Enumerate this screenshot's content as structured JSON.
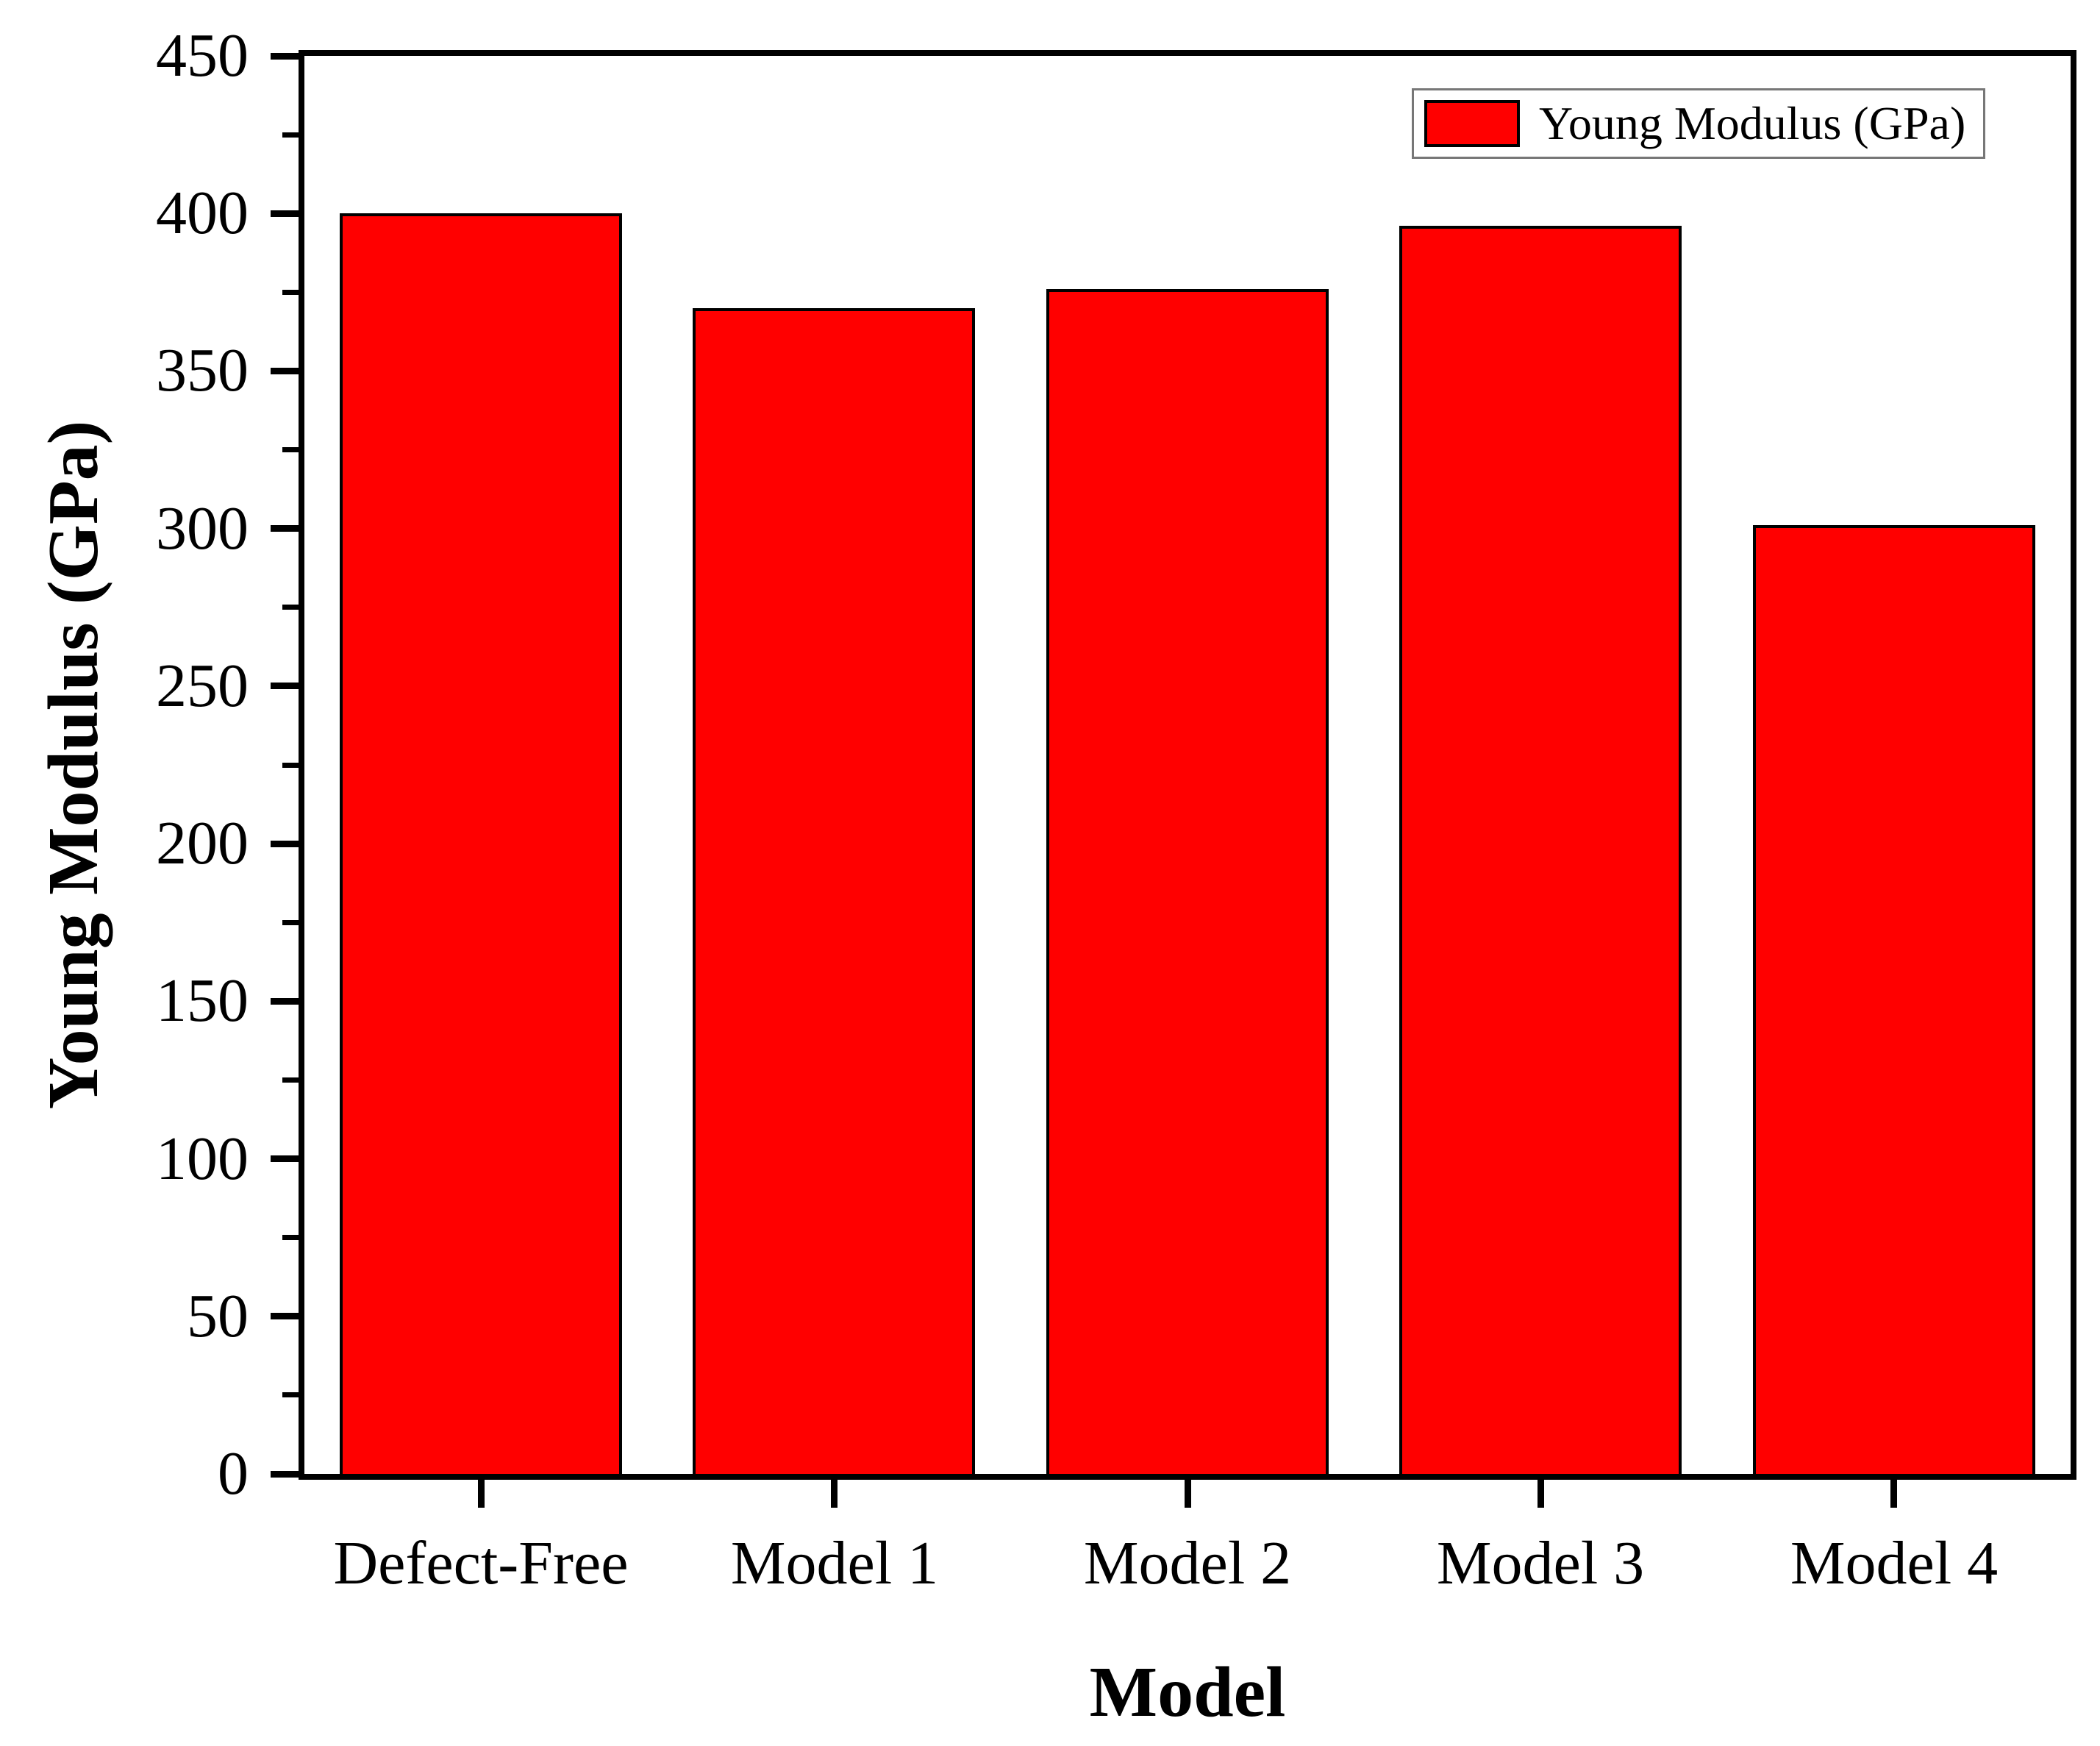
{
  "chart_data": {
    "type": "bar",
    "title": "",
    "categories": [
      "Defect-Free",
      "Model 1",
      "Model 2",
      "Model 3",
      "Model 4"
    ],
    "series": [
      {
        "name": "Young Modulus (GPa)",
        "values": [
          400,
          370,
          376,
          396,
          301
        ]
      }
    ],
    "xlabel": "Model",
    "ylabel": "Young Modulus (GPa)",
    "ylim": [
      0,
      450
    ],
    "y_major_ticks": [
      0,
      50,
      100,
      150,
      200,
      250,
      300,
      350,
      400,
      450
    ],
    "y_minor_step": 25,
    "bar_width_fraction": 0.8,
    "grid": false,
    "legend": {
      "position": "top-right",
      "entries": [
        {
          "label": "Young Modulus (GPa)",
          "color": "#ff0000",
          "edge_color": "#000000"
        }
      ]
    },
    "colors": {
      "bar_fill": "#ff0000",
      "bar_edge": "#000000",
      "axis": "#000000",
      "text": "#000000",
      "background": "#ffffff",
      "legend_border": "#777777"
    }
  }
}
